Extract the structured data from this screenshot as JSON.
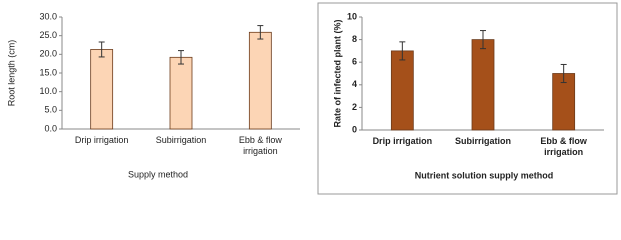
{
  "chart_data": [
    {
      "type": "bar",
      "categories": [
        "Drip irrigation",
        "Subirrigation",
        "Ebb & flow irrigation"
      ],
      "series": [
        {
          "color": "#fcd5b5",
          "values": [
            21.3,
            19.2,
            25.9
          ],
          "errors": [
            2.0,
            1.8,
            1.8
          ]
        }
      ],
      "xlabel": "Supply method",
      "ylabel": "Root length (cm)",
      "ylim": [
        0,
        30
      ],
      "yticks": [
        {
          "value": 0,
          "label": "0.0"
        },
        {
          "value": 5,
          "label": "5.0"
        },
        {
          "value": 10,
          "label": "10.0"
        },
        {
          "value": 15,
          "label": "15.0"
        },
        {
          "value": 20,
          "label": "20.0"
        },
        {
          "value": 25,
          "label": "25.0"
        },
        {
          "value": 30,
          "label": "30.0"
        }
      ],
      "grid": false
    },
    {
      "type": "bar",
      "categories": [
        "Drip irrigation",
        "Subirrigation",
        "Ebb & flow irrigation"
      ],
      "series": [
        {
          "color": "#a5501a",
          "values": [
            7.0,
            8.0,
            5.0
          ],
          "errors": [
            0.8,
            0.8,
            0.8
          ]
        }
      ],
      "xlabel": "Nutrient solution supply method",
      "ylabel": "Rate of infected plant (%)",
      "ylim": [
        0,
        10
      ],
      "yticks": [
        0,
        2,
        4,
        6,
        8,
        10
      ],
      "grid": false
    }
  ]
}
